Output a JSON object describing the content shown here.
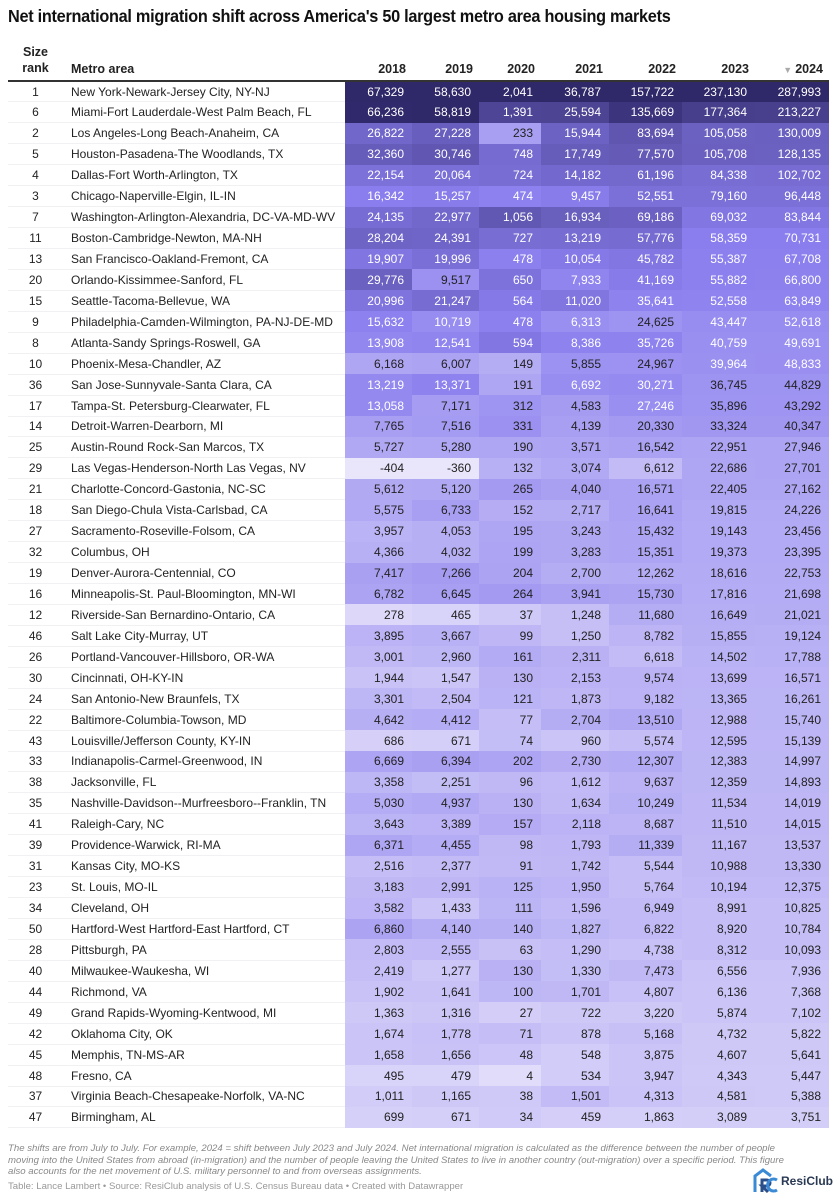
{
  "chart_data": {
    "type": "table",
    "title": "Net international migration shift across America's 50 largest metro area housing markets",
    "columns": {
      "rank": "Size rank",
      "rank_l1": "Size",
      "rank_l2": "rank",
      "metro": "Metro area",
      "years": [
        "2018",
        "2019",
        "2020",
        "2021",
        "2022",
        "2023",
        "2024"
      ]
    },
    "sorted_column": "2024",
    "sort_direction": "descending",
    "color_scale": {
      "light": "#efecfc",
      "mid": "#8a7eee",
      "dark": "#2b2463"
    },
    "rows": [
      [
        "1",
        "New York-Newark-Jersey City, NY-NJ",
        "67,329",
        "58,630",
        "2,041",
        "36,787",
        "157,722",
        "237,130",
        "287,993"
      ],
      [
        "6",
        "Miami-Fort Lauderdale-West Palm Beach, FL",
        "66,236",
        "58,819",
        "1,391",
        "25,594",
        "135,669",
        "177,364",
        "213,227"
      ],
      [
        "2",
        "Los Angeles-Long Beach-Anaheim, CA",
        "26,822",
        "27,228",
        "233",
        "15,944",
        "83,694",
        "105,058",
        "130,009"
      ],
      [
        "5",
        "Houston-Pasadena-The Woodlands, TX",
        "32,360",
        "30,746",
        "748",
        "17,749",
        "77,570",
        "105,708",
        "128,135"
      ],
      [
        "4",
        "Dallas-Fort Worth-Arlington, TX",
        "22,154",
        "20,064",
        "724",
        "14,182",
        "61,196",
        "84,338",
        "102,702"
      ],
      [
        "3",
        "Chicago-Naperville-Elgin, IL-IN",
        "16,342",
        "15,257",
        "474",
        "9,457",
        "52,551",
        "79,160",
        "96,448"
      ],
      [
        "7",
        "Washington-Arlington-Alexandria, DC-VA-MD-WV",
        "24,135",
        "22,977",
        "1,056",
        "16,934",
        "69,186",
        "69,032",
        "83,844"
      ],
      [
        "11",
        "Boston-Cambridge-Newton, MA-NH",
        "28,204",
        "24,391",
        "727",
        "13,219",
        "57,776",
        "58,359",
        "70,731"
      ],
      [
        "13",
        "San Francisco-Oakland-Fremont, CA",
        "19,907",
        "19,996",
        "478",
        "10,054",
        "45,782",
        "55,387",
        "67,708"
      ],
      [
        "20",
        "Orlando-Kissimmee-Sanford, FL",
        "29,776",
        "9,517",
        "650",
        "7,933",
        "41,169",
        "55,882",
        "66,800"
      ],
      [
        "15",
        "Seattle-Tacoma-Bellevue, WA",
        "20,996",
        "21,247",
        "564",
        "11,020",
        "35,641",
        "52,558",
        "63,849"
      ],
      [
        "9",
        "Philadelphia-Camden-Wilmington, PA-NJ-DE-MD",
        "15,632",
        "10,719",
        "478",
        "6,313",
        "24,625",
        "43,447",
        "52,618"
      ],
      [
        "8",
        "Atlanta-Sandy Springs-Roswell, GA",
        "13,908",
        "12,541",
        "594",
        "8,386",
        "35,726",
        "40,759",
        "49,691"
      ],
      [
        "10",
        "Phoenix-Mesa-Chandler, AZ",
        "6,168",
        "6,007",
        "149",
        "5,855",
        "24,967",
        "39,964",
        "48,833"
      ],
      [
        "36",
        "San Jose-Sunnyvale-Santa Clara, CA",
        "13,219",
        "13,371",
        "191",
        "6,692",
        "30,271",
        "36,745",
        "44,829"
      ],
      [
        "17",
        "Tampa-St. Petersburg-Clearwater, FL",
        "13,058",
        "7,171",
        "312",
        "4,583",
        "27,246",
        "35,896",
        "43,292"
      ],
      [
        "14",
        "Detroit-Warren-Dearborn, MI",
        "7,765",
        "7,516",
        "331",
        "4,139",
        "20,330",
        "33,324",
        "40,347"
      ],
      [
        "25",
        "Austin-Round Rock-San Marcos, TX",
        "5,727",
        "5,280",
        "190",
        "3,571",
        "16,542",
        "22,951",
        "27,946"
      ],
      [
        "29",
        "Las Vegas-Henderson-North Las Vegas, NV",
        "-404",
        "-360",
        "132",
        "3,074",
        "6,612",
        "22,686",
        "27,701"
      ],
      [
        "21",
        "Charlotte-Concord-Gastonia, NC-SC",
        "5,612",
        "5,120",
        "265",
        "4,040",
        "16,571",
        "22,405",
        "27,162"
      ],
      [
        "18",
        "San Diego-Chula Vista-Carlsbad, CA",
        "5,575",
        "6,733",
        "152",
        "2,717",
        "16,641",
        "19,815",
        "24,226"
      ],
      [
        "27",
        "Sacramento-Roseville-Folsom, CA",
        "3,957",
        "4,053",
        "195",
        "3,243",
        "15,432",
        "19,143",
        "23,456"
      ],
      [
        "32",
        "Columbus, OH",
        "4,366",
        "4,032",
        "199",
        "3,283",
        "15,351",
        "19,373",
        "23,395"
      ],
      [
        "19",
        "Denver-Aurora-Centennial, CO",
        "7,417",
        "7,266",
        "204",
        "2,700",
        "12,262",
        "18,616",
        "22,753"
      ],
      [
        "16",
        "Minneapolis-St. Paul-Bloomington, MN-WI",
        "6,782",
        "6,645",
        "264",
        "3,941",
        "15,730",
        "17,816",
        "21,698"
      ],
      [
        "12",
        "Riverside-San Bernardino-Ontario, CA",
        "278",
        "465",
        "37",
        "1,248",
        "11,680",
        "16,649",
        "21,021"
      ],
      [
        "46",
        "Salt Lake City-Murray, UT",
        "3,895",
        "3,667",
        "99",
        "1,250",
        "8,782",
        "15,855",
        "19,124"
      ],
      [
        "26",
        "Portland-Vancouver-Hillsboro, OR-WA",
        "3,001",
        "2,960",
        "161",
        "2,311",
        "6,618",
        "14,502",
        "17,788"
      ],
      [
        "30",
        "Cincinnati, OH-KY-IN",
        "1,944",
        "1,547",
        "130",
        "2,153",
        "9,574",
        "13,699",
        "16,571"
      ],
      [
        "24",
        "San Antonio-New Braunfels, TX",
        "3,301",
        "2,504",
        "121",
        "1,873",
        "9,182",
        "13,365",
        "16,261"
      ],
      [
        "22",
        "Baltimore-Columbia-Towson, MD",
        "4,642",
        "4,412",
        "77",
        "2,704",
        "13,510",
        "12,988",
        "15,740"
      ],
      [
        "43",
        "Louisville/Jefferson County, KY-IN",
        "686",
        "671",
        "74",
        "960",
        "5,574",
        "12,595",
        "15,139"
      ],
      [
        "33",
        "Indianapolis-Carmel-Greenwood, IN",
        "6,669",
        "6,394",
        "202",
        "2,730",
        "12,307",
        "12,383",
        "14,997"
      ],
      [
        "38",
        "Jacksonville, FL",
        "3,358",
        "2,251",
        "96",
        "1,612",
        "9,637",
        "12,359",
        "14,893"
      ],
      [
        "35",
        "Nashville-Davidson--Murfreesboro--Franklin, TN",
        "5,030",
        "4,937",
        "130",
        "1,634",
        "10,249",
        "11,534",
        "14,019"
      ],
      [
        "41",
        "Raleigh-Cary, NC",
        "3,643",
        "3,389",
        "157",
        "2,118",
        "8,687",
        "11,510",
        "14,015"
      ],
      [
        "39",
        "Providence-Warwick, RI-MA",
        "6,371",
        "4,455",
        "98",
        "1,793",
        "11,339",
        "11,167",
        "13,537"
      ],
      [
        "31",
        "Kansas City, MO-KS",
        "2,516",
        "2,377",
        "91",
        "1,742",
        "5,544",
        "10,988",
        "13,330"
      ],
      [
        "23",
        "St. Louis, MO-IL",
        "3,183",
        "2,991",
        "125",
        "1,950",
        "5,764",
        "10,194",
        "12,375"
      ],
      [
        "34",
        "Cleveland, OH",
        "3,582",
        "1,433",
        "111",
        "1,596",
        "6,949",
        "8,991",
        "10,825"
      ],
      [
        "50",
        "Hartford-West Hartford-East Hartford, CT",
        "6,860",
        "4,140",
        "140",
        "1,827",
        "6,822",
        "8,920",
        "10,784"
      ],
      [
        "28",
        "Pittsburgh, PA",
        "2,803",
        "2,555",
        "63",
        "1,290",
        "4,738",
        "8,312",
        "10,093"
      ],
      [
        "40",
        "Milwaukee-Waukesha, WI",
        "2,419",
        "1,277",
        "130",
        "1,330",
        "7,473",
        "6,556",
        "7,936"
      ],
      [
        "44",
        "Richmond, VA",
        "1,902",
        "1,641",
        "100",
        "1,701",
        "4,807",
        "6,136",
        "7,368"
      ],
      [
        "49",
        "Grand Rapids-Wyoming-Kentwood, MI",
        "1,363",
        "1,316",
        "27",
        "722",
        "3,220",
        "5,874",
        "7,102"
      ],
      [
        "42",
        "Oklahoma City, OK",
        "1,674",
        "1,778",
        "71",
        "878",
        "5,168",
        "4,732",
        "5,822"
      ],
      [
        "45",
        "Memphis, TN-MS-AR",
        "1,658",
        "1,656",
        "48",
        "548",
        "3,875",
        "4,607",
        "5,641"
      ],
      [
        "48",
        "Fresno, CA",
        "495",
        "479",
        "4",
        "534",
        "3,947",
        "4,343",
        "5,447"
      ],
      [
        "37",
        "Virginia Beach-Chesapeake-Norfolk, VA-NC",
        "1,011",
        "1,165",
        "38",
        "1,501",
        "4,313",
        "4,581",
        "5,388"
      ],
      [
        "47",
        "Birmingham, AL",
        "699",
        "671",
        "34",
        "459",
        "1,863",
        "3,089",
        "3,751"
      ]
    ]
  },
  "footer": {
    "note": "The shifts are from July to July. For example, 2024 = shift between July 2023 and July 2024. Net international migration is calculated as the difference between the number of people moving into the United States from abroad (in-migration) and the number of people leaving the United States to live in another country (out-migration) over a specific period. This figure also accounts for the net movement of U.S. military personnel to and from overseas assignments.",
    "source": "Table: Lance Lambert • Source: ResiClub analysis of U.S. Census Bureau data • Created with Datawrapper",
    "logo": "ResiClub"
  }
}
